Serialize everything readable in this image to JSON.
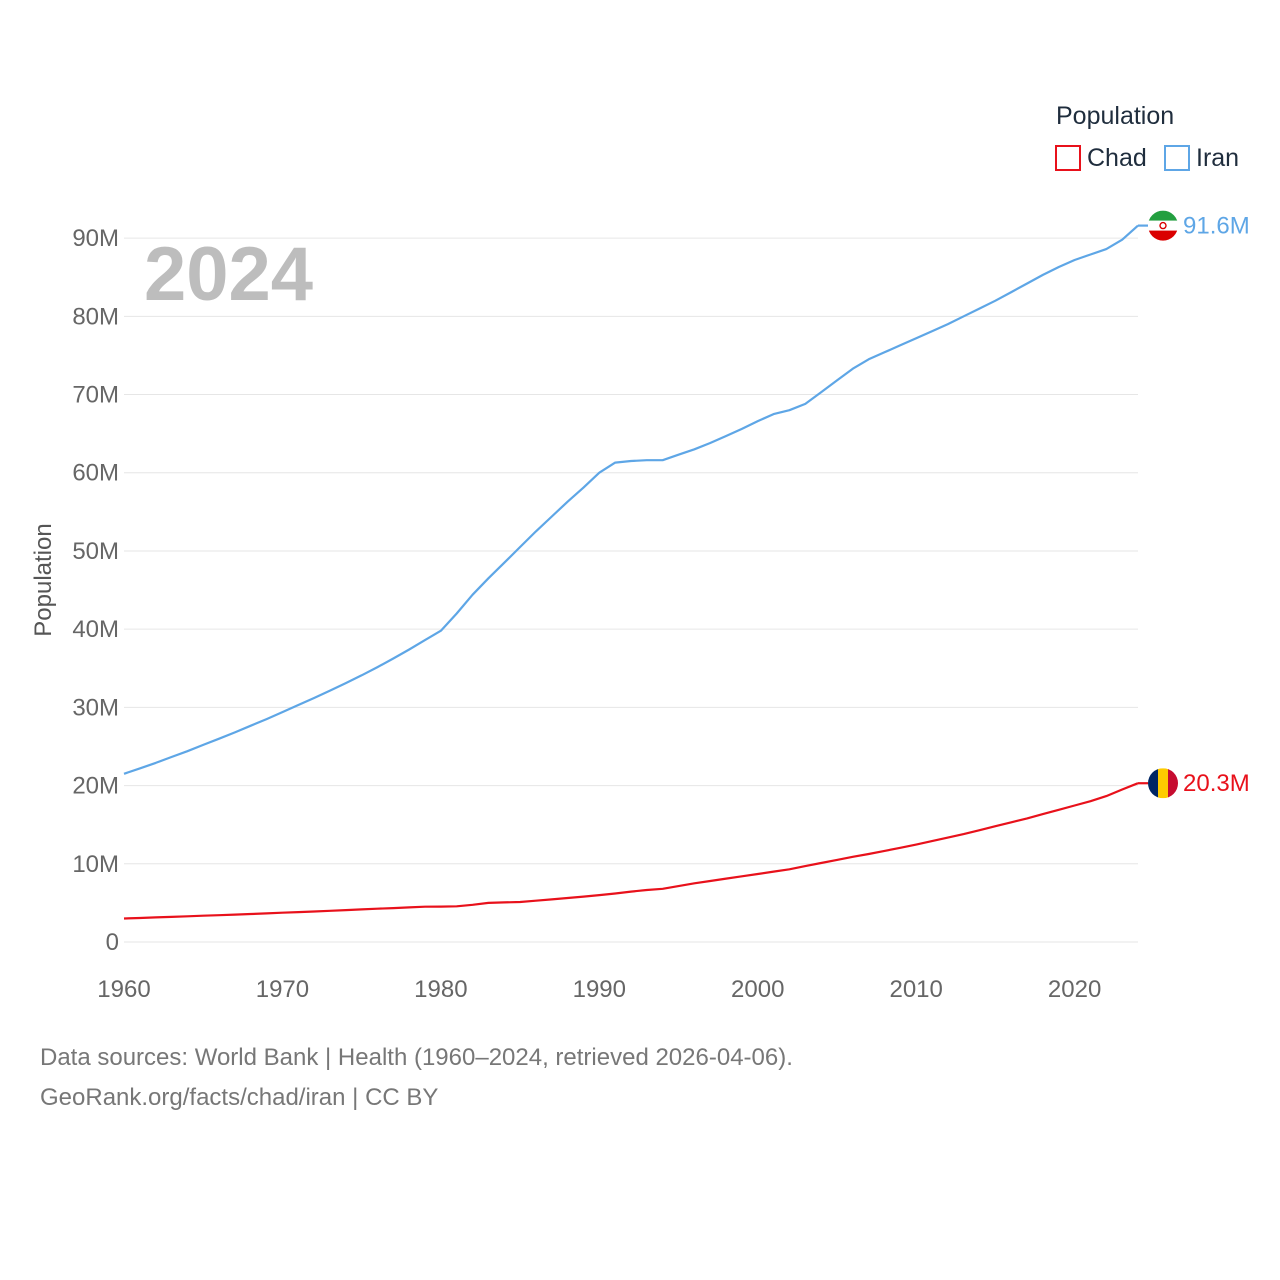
{
  "colors": {
    "chad": "#e8111b",
    "iran": "#5ea6e6",
    "grid": "#e6e6e6"
  },
  "chart_data": {
    "type": "line",
    "title": "",
    "year_label": "2024",
    "xlabel": "",
    "ylabel": "Population",
    "xlim": [
      1960,
      2024
    ],
    "ylim": [
      0,
      95000000
    ],
    "x_ticks": [
      1960,
      1970,
      1980,
      1990,
      2000,
      2010,
      2020
    ],
    "x_tick_labels": [
      "1960",
      "1970",
      "1980",
      "1990",
      "2000",
      "2010",
      "2020"
    ],
    "y_ticks": [
      0,
      10000000,
      20000000,
      30000000,
      40000000,
      50000000,
      60000000,
      70000000,
      80000000,
      90000000
    ],
    "y_tick_labels": [
      "0",
      "10M",
      "20M",
      "30M",
      "40M",
      "50M",
      "60M",
      "70M",
      "80M",
      "90M"
    ],
    "legend_title": "Population",
    "legend_position": "top-right",
    "x": [
      1960,
      1961,
      1962,
      1963,
      1964,
      1965,
      1966,
      1967,
      1968,
      1969,
      1970,
      1971,
      1972,
      1973,
      1974,
      1975,
      1976,
      1977,
      1978,
      1979,
      1980,
      1981,
      1982,
      1983,
      1984,
      1985,
      1986,
      1987,
      1988,
      1989,
      1990,
      1991,
      1992,
      1993,
      1994,
      1995,
      1996,
      1997,
      1998,
      1999,
      2000,
      2001,
      2002,
      2003,
      2004,
      2005,
      2006,
      2007,
      2008,
      2009,
      2010,
      2011,
      2012,
      2013,
      2014,
      2015,
      2016,
      2017,
      2018,
      2019,
      2020,
      2021,
      2022,
      2023,
      2024
    ],
    "series": [
      {
        "name": "Chad",
        "key": "chad",
        "end_label": "20.3M",
        "values": [
          3000000,
          3070000,
          3140000,
          3210000,
          3290000,
          3360000,
          3430000,
          3500000,
          3580000,
          3660000,
          3740000,
          3820000,
          3900000,
          3990000,
          4080000,
          4170000,
          4260000,
          4340000,
          4430000,
          4510000,
          4530000,
          4560000,
          4760000,
          5000000,
          5060000,
          5120000,
          5280000,
          5450000,
          5630000,
          5810000,
          6000000,
          6200000,
          6450000,
          6650000,
          6800000,
          7150000,
          7500000,
          7800000,
          8100000,
          8400000,
          8700000,
          9000000,
          9300000,
          9700000,
          10100000,
          10500000,
          10900000,
          11250000,
          11650000,
          12050000,
          12450000,
          12900000,
          13350000,
          13800000,
          14300000,
          14800000,
          15300000,
          15800000,
          16350000,
          16900000,
          17450000,
          18000000,
          18650000,
          19500000,
          20300000
        ]
      },
      {
        "name": "Iran",
        "key": "iran",
        "end_label": "91.6M",
        "values": [
          21500000,
          22200000,
          22900000,
          23650000,
          24400000,
          25200000,
          26000000,
          26800000,
          27650000,
          28500000,
          29400000,
          30300000,
          31200000,
          32150000,
          33100000,
          34100000,
          35150000,
          36250000,
          37400000,
          38600000,
          39800000,
          42000000,
          44400000,
          46500000,
          48500000,
          50500000,
          52500000,
          54400000,
          56300000,
          58100000,
          60000000,
          61300000,
          61500000,
          61600000,
          61600000,
          62300000,
          63000000,
          63800000,
          64700000,
          65600000,
          66600000,
          67500000,
          68000000,
          68800000,
          70300000,
          71800000,
          73300000,
          74500000,
          75400000,
          76300000,
          77200000,
          78100000,
          79000000,
          80000000,
          81000000,
          82000000,
          83100000,
          84200000,
          85300000,
          86300000,
          87200000,
          87900000,
          88600000,
          89800000,
          91600000
        ]
      }
    ]
  },
  "legend": {
    "title": "Population",
    "items": [
      {
        "label": "Chad",
        "color": "#e8111b"
      },
      {
        "label": "Iran",
        "color": "#5ea6e6"
      }
    ]
  },
  "flags": {
    "iran": {
      "name": "Iran",
      "colors": [
        "#239f40",
        "#ffffff",
        "#da0000"
      ]
    },
    "chad": {
      "name": "Chad",
      "colors": [
        "#002664",
        "#fecb00",
        "#c60c30"
      ]
    }
  },
  "footer": {
    "source": "Data sources: World Bank | Health (1960–2024, retrieved 2026-04-06).",
    "credit": "GeoRank.org/facts/chad/iran | CC BY"
  }
}
